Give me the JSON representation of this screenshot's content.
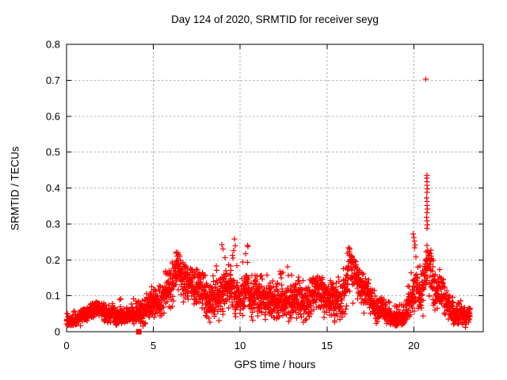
{
  "chart_data": {
    "type": "scatter",
    "title": "Day 124 of 2020, SRMTID for receiver seyg",
    "xlabel": "GPS time / hours",
    "ylabel": "SRMTID / TECUs",
    "xlim": [
      0,
      24
    ],
    "ylim": [
      0,
      0.8
    ],
    "xticks": [
      0,
      5,
      10,
      15,
      20
    ],
    "xtick_labels": [
      "0",
      "5",
      "10",
      "15",
      "20"
    ],
    "yticks": [
      0,
      0.1,
      0.2,
      0.3,
      0.4,
      0.5,
      0.6,
      0.7,
      0.8
    ],
    "ytick_labels": [
      "0",
      "0.1",
      "0.2",
      "0.3",
      "0.4",
      "0.5",
      "0.6",
      "0.7",
      "0.8"
    ],
    "grid": true,
    "legend": null,
    "marker": {
      "shape": "plus",
      "size": 7,
      "color": "#ff0000"
    },
    "colors": {
      "background": "#ffffff",
      "axis": "#000000",
      "grid": "#b0b0b0",
      "text": "#000000"
    },
    "series_name": "SRMTID",
    "time_range_hours": [
      0,
      23.25
    ],
    "max_value": 0.703,
    "envelope_t_lo_mid_hi": [
      [
        0.0,
        0.012,
        0.028,
        0.055
      ],
      [
        0.5,
        0.014,
        0.03,
        0.06
      ],
      [
        1.0,
        0.016,
        0.035,
        0.065
      ],
      [
        1.5,
        0.02,
        0.045,
        0.08
      ],
      [
        2.0,
        0.025,
        0.05,
        0.092
      ],
      [
        2.5,
        0.025,
        0.048,
        0.08
      ],
      [
        3.0,
        0.028,
        0.055,
        0.1
      ],
      [
        3.5,
        0.028,
        0.052,
        0.09
      ],
      [
        4.0,
        0.03,
        0.06,
        0.11
      ],
      [
        4.5,
        0.035,
        0.07,
        0.12
      ],
      [
        5.0,
        0.04,
        0.08,
        0.135
      ],
      [
        5.5,
        0.045,
        0.09,
        0.16
      ],
      [
        6.0,
        0.06,
        0.12,
        0.2
      ],
      [
        6.3,
        0.07,
        0.135,
        0.225
      ],
      [
        6.7,
        0.06,
        0.12,
        0.19
      ],
      [
        7.0,
        0.05,
        0.105,
        0.17
      ],
      [
        7.5,
        0.055,
        0.11,
        0.18
      ],
      [
        8.0,
        0.05,
        0.1,
        0.17
      ],
      [
        8.5,
        0.055,
        0.115,
        0.21
      ],
      [
        9.0,
        0.06,
        0.12,
        0.245
      ],
      [
        9.35,
        0.05,
        0.1,
        0.185
      ],
      [
        9.7,
        0.065,
        0.125,
        0.26
      ],
      [
        10.0,
        0.055,
        0.115,
        0.21
      ],
      [
        10.45,
        0.06,
        0.12,
        0.245
      ],
      [
        11.0,
        0.05,
        0.1,
        0.17
      ],
      [
        11.5,
        0.048,
        0.095,
        0.16
      ],
      [
        12.0,
        0.05,
        0.105,
        0.175
      ],
      [
        12.6,
        0.055,
        0.11,
        0.2
      ],
      [
        13.0,
        0.05,
        0.1,
        0.165
      ],
      [
        13.5,
        0.048,
        0.098,
        0.155
      ],
      [
        14.0,
        0.042,
        0.09,
        0.15
      ],
      [
        14.5,
        0.048,
        0.1,
        0.165
      ],
      [
        15.0,
        0.035,
        0.08,
        0.14
      ],
      [
        15.5,
        0.04,
        0.09,
        0.16
      ],
      [
        16.0,
        0.06,
        0.125,
        0.21
      ],
      [
        16.3,
        0.07,
        0.14,
        0.235
      ],
      [
        16.7,
        0.055,
        0.11,
        0.185
      ],
      [
        17.0,
        0.05,
        0.1,
        0.165
      ],
      [
        17.5,
        0.04,
        0.08,
        0.135
      ],
      [
        18.0,
        0.03,
        0.06,
        0.105
      ],
      [
        18.5,
        0.022,
        0.05,
        0.09
      ],
      [
        19.0,
        0.018,
        0.042,
        0.08
      ],
      [
        19.5,
        0.02,
        0.05,
        0.09
      ],
      [
        19.9,
        0.035,
        0.09,
        0.2
      ],
      [
        20.05,
        0.045,
        0.11,
        0.275
      ],
      [
        20.2,
        0.05,
        0.1,
        0.18
      ],
      [
        20.5,
        0.055,
        0.115,
        0.21
      ],
      [
        20.75,
        0.07,
        0.145,
        0.28
      ],
      [
        21.0,
        0.06,
        0.13,
        0.235
      ],
      [
        21.3,
        0.05,
        0.11,
        0.205
      ],
      [
        21.6,
        0.04,
        0.09,
        0.15
      ],
      [
        22.0,
        0.03,
        0.062,
        0.115
      ],
      [
        22.5,
        0.022,
        0.05,
        0.088
      ],
      [
        23.0,
        0.02,
        0.042,
        0.08
      ],
      [
        23.25,
        0.018,
        0.04,
        0.07
      ]
    ],
    "outliers": [
      [
        20.7,
        0.703
      ],
      [
        20.76,
        0.435
      ],
      [
        20.74,
        0.428
      ],
      [
        20.77,
        0.418
      ],
      [
        20.75,
        0.408
      ],
      [
        20.78,
        0.398
      ],
      [
        20.76,
        0.388
      ],
      [
        20.74,
        0.372
      ],
      [
        20.77,
        0.362
      ],
      [
        20.75,
        0.352
      ],
      [
        20.78,
        0.342
      ],
      [
        20.76,
        0.332
      ],
      [
        20.74,
        0.318
      ],
      [
        20.77,
        0.308
      ],
      [
        20.79,
        0.298
      ],
      [
        20.75,
        0.288
      ],
      [
        19.97,
        0.272
      ],
      [
        20.01,
        0.262
      ],
      [
        20.03,
        0.252
      ],
      [
        9.68,
        0.258
      ],
      [
        8.95,
        0.242
      ],
      [
        10.42,
        0.24
      ],
      [
        16.28,
        0.232
      ],
      [
        6.32,
        0.222
      ],
      [
        9.0,
        0.23
      ],
      [
        21.0,
        0.21
      ],
      [
        22.7,
        0.086
      ]
    ],
    "square_point": {
      "x": 4.16,
      "y": 0.0
    },
    "generation": {
      "seed": 124,
      "sample_step_hours": 0.0083
    }
  }
}
